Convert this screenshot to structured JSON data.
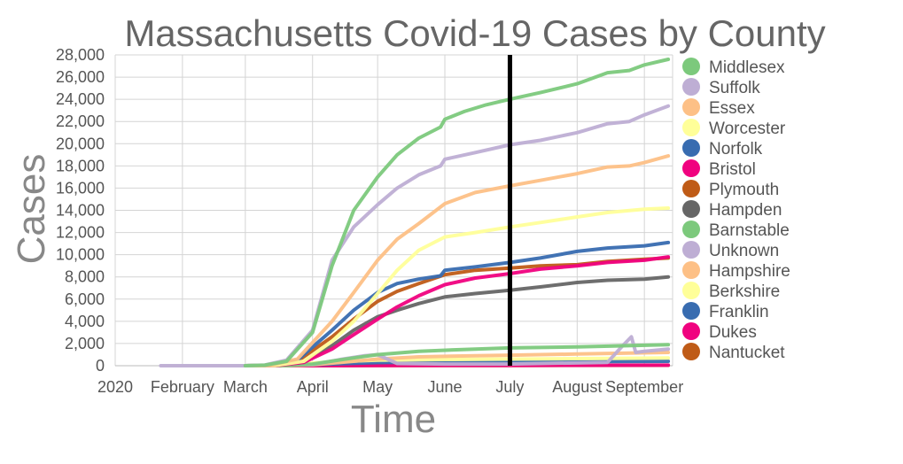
{
  "chart_data": {
    "type": "line",
    "title": "Massachusetts Covid-19 Cases by County",
    "xlabel": "Time",
    "ylabel": "Cases",
    "ylim": [
      0,
      28000
    ],
    "yticks": [
      0,
      2000,
      4000,
      6000,
      8000,
      10000,
      12000,
      14000,
      16000,
      18000,
      20000,
      22000,
      24000,
      26000,
      28000
    ],
    "ytick_labels": [
      "0",
      "2,000",
      "4,000",
      "6,000",
      "8,000",
      "10,000",
      "12,000",
      "14,000",
      "16,000",
      "18,000",
      "20,000",
      "22,000",
      "24,000",
      "26,000",
      "28,000"
    ],
    "xlim": [
      "2020-01-01",
      "2020-09-14"
    ],
    "xticks": [
      {
        "date": "2020-01-01",
        "label": "2020"
      },
      {
        "date": "2020-02-01",
        "label": "February"
      },
      {
        "date": "2020-03-01",
        "label": "March"
      },
      {
        "date": "2020-04-01",
        "label": "April"
      },
      {
        "date": "2020-05-01",
        "label": "May"
      },
      {
        "date": "2020-06-01",
        "label": "June"
      },
      {
        "date": "2020-07-01",
        "label": "July"
      },
      {
        "date": "2020-08-01",
        "label": "August"
      },
      {
        "date": "2020-09-01",
        "label": "September"
      }
    ],
    "vertical_marker": "2020-07-01",
    "grid": true,
    "legend_position": "right",
    "series": [
      {
        "name": "Middlesex",
        "color": "#7cc97c",
        "points": [
          [
            "2020-03-01",
            0
          ],
          [
            "2020-03-10",
            50
          ],
          [
            "2020-03-20",
            400
          ],
          [
            "2020-04-01",
            3000
          ],
          [
            "2020-04-10",
            9000
          ],
          [
            "2020-04-20",
            14000
          ],
          [
            "2020-05-01",
            17000
          ],
          [
            "2020-05-10",
            19000
          ],
          [
            "2020-05-20",
            20500
          ],
          [
            "2020-05-30",
            21500
          ],
          [
            "2020-06-01",
            22200
          ],
          [
            "2020-06-10",
            22900
          ],
          [
            "2020-06-20",
            23500
          ],
          [
            "2020-07-01",
            24000
          ],
          [
            "2020-07-15",
            24600
          ],
          [
            "2020-08-01",
            25400
          ],
          [
            "2020-08-15",
            26400
          ],
          [
            "2020-08-25",
            26600
          ],
          [
            "2020-09-01",
            27100
          ],
          [
            "2020-09-12",
            27600
          ]
        ]
      },
      {
        "name": "Suffolk",
        "color": "#beaed4",
        "points": [
          [
            "2020-01-22",
            0
          ],
          [
            "2020-03-01",
            0
          ],
          [
            "2020-03-10",
            60
          ],
          [
            "2020-03-20",
            500
          ],
          [
            "2020-04-01",
            3200
          ],
          [
            "2020-04-10",
            9500
          ],
          [
            "2020-04-20",
            12500
          ],
          [
            "2020-05-01",
            14500
          ],
          [
            "2020-05-10",
            16000
          ],
          [
            "2020-05-20",
            17200
          ],
          [
            "2020-05-30",
            18000
          ],
          [
            "2020-06-01",
            18600
          ],
          [
            "2020-06-15",
            19200
          ],
          [
            "2020-07-01",
            19900
          ],
          [
            "2020-07-15",
            20300
          ],
          [
            "2020-08-01",
            21000
          ],
          [
            "2020-08-15",
            21800
          ],
          [
            "2020-08-25",
            22000
          ],
          [
            "2020-09-01",
            22600
          ],
          [
            "2020-09-12",
            23400
          ]
        ]
      },
      {
        "name": "Essex",
        "color": "#fdc086",
        "points": [
          [
            "2020-03-01",
            0
          ],
          [
            "2020-03-12",
            30
          ],
          [
            "2020-03-25",
            600
          ],
          [
            "2020-04-10",
            4000
          ],
          [
            "2020-04-20",
            6600
          ],
          [
            "2020-05-01",
            9500
          ],
          [
            "2020-05-10",
            11400
          ],
          [
            "2020-05-20",
            12800
          ],
          [
            "2020-06-01",
            14600
          ],
          [
            "2020-06-15",
            15600
          ],
          [
            "2020-07-01",
            16200
          ],
          [
            "2020-07-15",
            16700
          ],
          [
            "2020-08-01",
            17300
          ],
          [
            "2020-08-15",
            17900
          ],
          [
            "2020-08-25",
            18000
          ],
          [
            "2020-09-01",
            18300
          ],
          [
            "2020-09-12",
            18900
          ]
        ]
      },
      {
        "name": "Worcester",
        "color": "#ffff99",
        "points": [
          [
            "2020-03-01",
            0
          ],
          [
            "2020-03-15",
            20
          ],
          [
            "2020-03-28",
            400
          ],
          [
            "2020-04-10",
            2200
          ],
          [
            "2020-04-20",
            4000
          ],
          [
            "2020-05-01",
            6500
          ],
          [
            "2020-05-10",
            8600
          ],
          [
            "2020-05-20",
            10400
          ],
          [
            "2020-06-01",
            11600
          ],
          [
            "2020-06-15",
            12000
          ],
          [
            "2020-07-01",
            12500
          ],
          [
            "2020-07-15",
            12900
          ],
          [
            "2020-08-01",
            13400
          ],
          [
            "2020-08-15",
            13800
          ],
          [
            "2020-09-01",
            14100
          ],
          [
            "2020-09-12",
            14200
          ]
        ]
      },
      {
        "name": "Norfolk",
        "color": "#386cb0",
        "points": [
          [
            "2020-03-01",
            0
          ],
          [
            "2020-03-12",
            40
          ],
          [
            "2020-03-25",
            500
          ],
          [
            "2020-04-10",
            3200
          ],
          [
            "2020-04-20",
            5000
          ],
          [
            "2020-05-01",
            6600
          ],
          [
            "2020-05-10",
            7400
          ],
          [
            "2020-05-20",
            7800
          ],
          [
            "2020-05-30",
            8100
          ],
          [
            "2020-06-01",
            8600
          ],
          [
            "2020-06-15",
            8900
          ],
          [
            "2020-07-01",
            9300
          ],
          [
            "2020-07-15",
            9700
          ],
          [
            "2020-08-01",
            10300
          ],
          [
            "2020-08-15",
            10600
          ],
          [
            "2020-09-01",
            10800
          ],
          [
            "2020-09-12",
            11100
          ]
        ]
      },
      {
        "name": "Bristol",
        "color": "#f0027f",
        "points": [
          [
            "2020-03-01",
            0
          ],
          [
            "2020-03-15",
            10
          ],
          [
            "2020-03-28",
            300
          ],
          [
            "2020-04-10",
            1500
          ],
          [
            "2020-04-20",
            2800
          ],
          [
            "2020-05-01",
            4200
          ],
          [
            "2020-05-10",
            5300
          ],
          [
            "2020-05-20",
            6300
          ],
          [
            "2020-06-01",
            7300
          ],
          [
            "2020-06-15",
            7900
          ],
          [
            "2020-07-01",
            8300
          ],
          [
            "2020-07-15",
            8700
          ],
          [
            "2020-08-01",
            9000
          ],
          [
            "2020-08-15",
            9300
          ],
          [
            "2020-09-01",
            9500
          ],
          [
            "2020-09-12",
            9800
          ]
        ]
      },
      {
        "name": "Plymouth",
        "color": "#bf5b17",
        "points": [
          [
            "2020-03-01",
            0
          ],
          [
            "2020-03-12",
            20
          ],
          [
            "2020-03-25",
            400
          ],
          [
            "2020-04-10",
            2600
          ],
          [
            "2020-04-20",
            4200
          ],
          [
            "2020-05-01",
            5800
          ],
          [
            "2020-05-10",
            6700
          ],
          [
            "2020-05-20",
            7400
          ],
          [
            "2020-06-01",
            8200
          ],
          [
            "2020-06-15",
            8600
          ],
          [
            "2020-07-01",
            8800
          ],
          [
            "2020-07-15",
            9000
          ],
          [
            "2020-08-01",
            9100
          ],
          [
            "2020-08-15",
            9400
          ],
          [
            "2020-09-01",
            9600
          ],
          [
            "2020-09-12",
            9700
          ]
        ]
      },
      {
        "name": "Hampden",
        "color": "#666666",
        "points": [
          [
            "2020-03-01",
            0
          ],
          [
            "2020-03-15",
            10
          ],
          [
            "2020-03-28",
            300
          ],
          [
            "2020-04-10",
            1800
          ],
          [
            "2020-04-20",
            3200
          ],
          [
            "2020-05-01",
            4400
          ],
          [
            "2020-05-10",
            5000
          ],
          [
            "2020-05-20",
            5600
          ],
          [
            "2020-06-01",
            6200
          ],
          [
            "2020-06-15",
            6500
          ],
          [
            "2020-07-01",
            6800
          ],
          [
            "2020-07-15",
            7100
          ],
          [
            "2020-08-01",
            7500
          ],
          [
            "2020-08-15",
            7700
          ],
          [
            "2020-09-01",
            7800
          ],
          [
            "2020-09-12",
            8000
          ]
        ]
      },
      {
        "name": "Barnstable",
        "color": "#7cc97c",
        "points": [
          [
            "2020-03-01",
            0
          ],
          [
            "2020-03-20",
            20
          ],
          [
            "2020-04-01",
            150
          ],
          [
            "2020-04-20",
            700
          ],
          [
            "2020-05-01",
            1000
          ],
          [
            "2020-05-20",
            1300
          ],
          [
            "2020-06-15",
            1500
          ],
          [
            "2020-07-01",
            1600
          ],
          [
            "2020-08-01",
            1700
          ],
          [
            "2020-09-12",
            1900
          ]
        ]
      },
      {
        "name": "Unknown",
        "color": "#beaed4",
        "points": [
          [
            "2020-03-01",
            0
          ],
          [
            "2020-04-01",
            100
          ],
          [
            "2020-04-15",
            600
          ],
          [
            "2020-04-25",
            900
          ],
          [
            "2020-05-01",
            1000
          ],
          [
            "2020-05-10",
            200
          ],
          [
            "2020-06-01",
            150
          ],
          [
            "2020-07-01",
            150
          ],
          [
            "2020-08-15",
            300
          ],
          [
            "2020-08-22",
            1800
          ],
          [
            "2020-08-26",
            2600
          ],
          [
            "2020-08-28",
            1200
          ],
          [
            "2020-09-01",
            1300
          ],
          [
            "2020-09-12",
            1500
          ]
        ]
      },
      {
        "name": "Hampshire",
        "color": "#fdc086",
        "points": [
          [
            "2020-03-01",
            0
          ],
          [
            "2020-03-20",
            10
          ],
          [
            "2020-04-01",
            80
          ],
          [
            "2020-04-20",
            400
          ],
          [
            "2020-05-01",
            600
          ],
          [
            "2020-05-20",
            800
          ],
          [
            "2020-06-15",
            900
          ],
          [
            "2020-07-01",
            950
          ],
          [
            "2020-08-01",
            1050
          ],
          [
            "2020-09-12",
            1200
          ]
        ]
      },
      {
        "name": "Berkshire",
        "color": "#ffff99",
        "points": [
          [
            "2020-03-01",
            0
          ],
          [
            "2020-03-10",
            20
          ],
          [
            "2020-03-25",
            150
          ],
          [
            "2020-04-10",
            350
          ],
          [
            "2020-05-01",
            500
          ],
          [
            "2020-06-01",
            560
          ],
          [
            "2020-07-01",
            600
          ],
          [
            "2020-08-01",
            640
          ],
          [
            "2020-09-12",
            700
          ]
        ]
      },
      {
        "name": "Franklin",
        "color": "#386cb0",
        "points": [
          [
            "2020-03-01",
            0
          ],
          [
            "2020-03-20",
            10
          ],
          [
            "2020-04-10",
            150
          ],
          [
            "2020-05-01",
            280
          ],
          [
            "2020-06-01",
            330
          ],
          [
            "2020-07-01",
            350
          ],
          [
            "2020-08-01",
            370
          ],
          [
            "2020-09-12",
            400
          ]
        ]
      },
      {
        "name": "Dukes",
        "color": "#f0027f",
        "points": [
          [
            "2020-03-01",
            0
          ],
          [
            "2020-04-01",
            5
          ],
          [
            "2020-05-01",
            20
          ],
          [
            "2020-07-01",
            30
          ],
          [
            "2020-09-12",
            50
          ]
        ]
      },
      {
        "name": "Nantucket",
        "color": "#bf5b17",
        "points": [
          [
            "2020-03-01",
            0
          ],
          [
            "2020-04-01",
            5
          ],
          [
            "2020-05-01",
            15
          ],
          [
            "2020-07-01",
            25
          ],
          [
            "2020-09-12",
            40
          ]
        ]
      }
    ]
  }
}
